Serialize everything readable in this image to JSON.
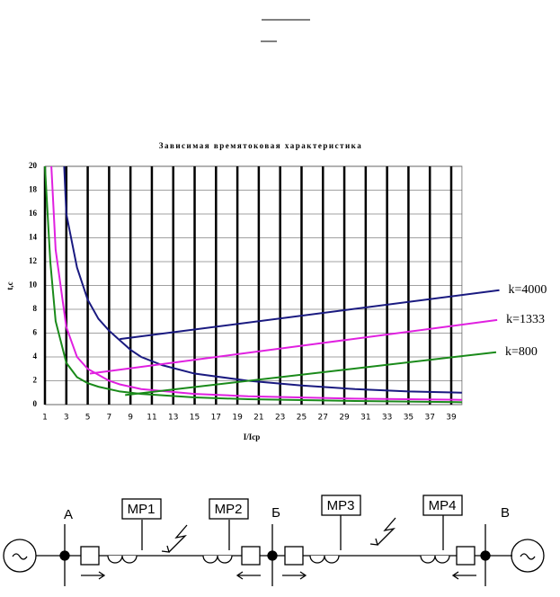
{
  "chart_data": {
    "type": "line",
    "title": "Зависимая времятоковая характеристика",
    "xlabel": "I/Icp",
    "ylabel": "t,c",
    "xlim": [
      1,
      40
    ],
    "ylim": [
      0,
      20
    ],
    "xticks": [
      1,
      3,
      5,
      7,
      9,
      11,
      13,
      15,
      17,
      19,
      21,
      23,
      25,
      27,
      29,
      31,
      33,
      35,
      37,
      39
    ],
    "yticks": [
      0,
      2,
      4,
      6,
      8,
      10,
      12,
      14,
      16,
      18,
      20
    ],
    "grid": true,
    "series": [
      {
        "color": "#1a1a80",
        "x": [
          2.8,
          3,
          4,
          5,
          6,
          7,
          8,
          9,
          10,
          12,
          15,
          20,
          25,
          30,
          35,
          40
        ],
        "values": [
          20,
          16,
          11.5,
          8.8,
          7.2,
          6.2,
          5.4,
          4.6,
          4,
          3.3,
          2.6,
          2,
          1.6,
          1.3,
          1.1,
          1.0
        ]
      },
      {
        "color": "#e020e0",
        "x": [
          1.6,
          2,
          3,
          4,
          5,
          6,
          7,
          8,
          10,
          15,
          20,
          30,
          40
        ],
        "values": [
          20,
          13,
          6.5,
          4,
          3,
          2.5,
          2,
          1.7,
          1.3,
          0.9,
          0.7,
          0.5,
          0.4
        ]
      },
      {
        "color": "#1a8a1a",
        "x": [
          1,
          1.5,
          2,
          3,
          4,
          5,
          6,
          8,
          10,
          15,
          20,
          30,
          40
        ],
        "values": [
          20,
          12,
          7,
          3.5,
          2.3,
          1.8,
          1.5,
          1.1,
          0.9,
          0.6,
          0.45,
          0.3,
          0.2
        ]
      },
      {
        "name": "k=4000",
        "color": "#1a1a80",
        "x": [
          8,
          43.5
        ],
        "values": [
          5.5,
          9.6
        ]
      },
      {
        "name": "k=1333",
        "color": "#e020e0",
        "x": [
          5.2,
          43.3
        ],
        "values": [
          2.6,
          7.1
        ]
      },
      {
        "name": "k=800",
        "color": "#1a8a1a",
        "x": [
          8.5,
          43.2
        ],
        "values": [
          0.8,
          4.4
        ]
      }
    ]
  },
  "diagram": {
    "buses": [
      "А",
      "Б",
      "В"
    ],
    "relays": [
      "МР1",
      "МР2",
      "МР3",
      "МР4"
    ]
  }
}
